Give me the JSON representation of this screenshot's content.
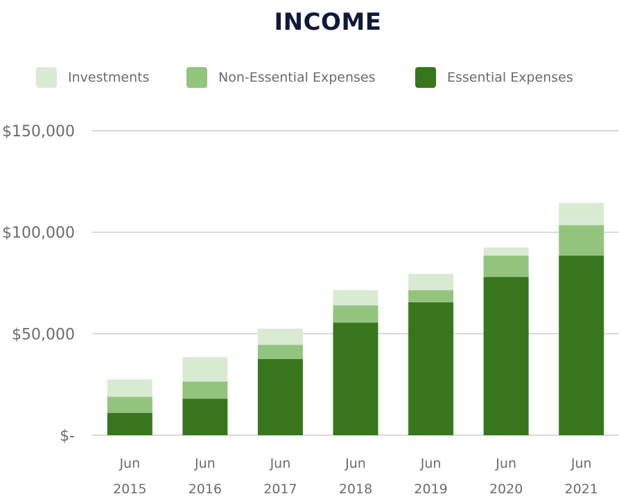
{
  "chart_data": {
    "type": "bar",
    "stacked": true,
    "title": "INCOME",
    "categories": [
      "Jun 2015",
      "Jun 2016",
      "Jun 2017",
      "Jun 2018",
      "Jun 2019",
      "Jun 2020",
      "Jun 2021"
    ],
    "category_lines": [
      [
        "Jun",
        "2015"
      ],
      [
        "Jun",
        "2016"
      ],
      [
        "Jun",
        "2017"
      ],
      [
        "Jun",
        "2018"
      ],
      [
        "Jun",
        "2019"
      ],
      [
        "Jun",
        "2020"
      ],
      [
        "Jun",
        "2021"
      ]
    ],
    "series": [
      {
        "name": "Essential Expenses",
        "color": "#38761d",
        "values": [
          11000,
          18000,
          37500,
          55500,
          65500,
          78000,
          88500
        ]
      },
      {
        "name": "Non-Essential Expenses",
        "color": "#93c47d",
        "values": [
          8000,
          8500,
          7000,
          8500,
          6000,
          10500,
          15000
        ]
      },
      {
        "name": "Investments",
        "color": "#d9ead3",
        "values": [
          8500,
          12000,
          8000,
          7500,
          8000,
          4000,
          11000
        ]
      }
    ],
    "legend": [
      {
        "name": "Investments",
        "color": "#d9ead3"
      },
      {
        "name": "Non-Essential Expenses",
        "color": "#93c47d"
      },
      {
        "name": "Essential Expenses",
        "color": "#38761d"
      }
    ],
    "legend_position": "top",
    "y_ticks": [
      {
        "value": 0,
        "label": "$-"
      },
      {
        "value": 50000,
        "label": "$50,000"
      },
      {
        "value": 100000,
        "label": "$100,000"
      },
      {
        "value": 150000,
        "label": "$150,000"
      }
    ],
    "ylim": [
      0,
      150000
    ],
    "grid": true,
    "xlabel": "",
    "ylabel": ""
  }
}
